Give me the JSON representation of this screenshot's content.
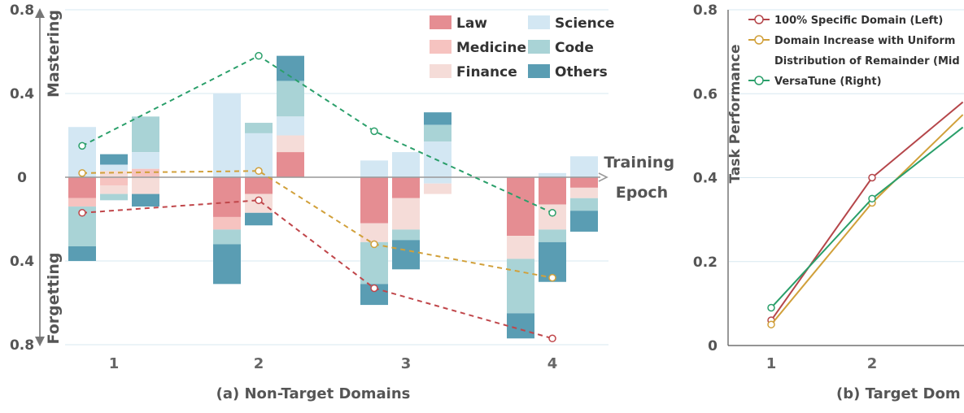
{
  "chart_data": [
    {
      "type": "bar",
      "subtitle": "(a) Non-Target Domains",
      "xlabel": "Training\nEpoch",
      "ylabel_top": "Mastering",
      "ylabel_bottom": "Forgetting",
      "categories": [
        "1",
        "2",
        "3",
        "4"
      ],
      "ylim": [
        -0.8,
        0.8
      ],
      "y_ticks": [
        {
          "value": 0.8,
          "label": "0.8"
        },
        {
          "value": 0.4,
          "label": "0.4"
        },
        {
          "value": 0,
          "label": "0"
        },
        {
          "value": -0.4,
          "label": "0.4"
        },
        {
          "value": -0.8,
          "label": "0.8"
        }
      ],
      "grid": true,
      "legend_position": "top-right",
      "domains": [
        "Law",
        "Medicine",
        "Finance",
        "Science",
        "Code",
        "Others"
      ],
      "domain_colors": {
        "Law": "#e58d92",
        "Medicine": "#f6c3c0",
        "Finance": "#f5dcd8",
        "Science": "#d3e7f3",
        "Code": "#a9d3d6",
        "Others": "#5a9db3"
      },
      "bar_groups": [
        {
          "category": "1",
          "bars": [
            {
              "offset": -1,
              "segments": [
                {
                  "domain": "Science",
                  "from": 0,
                  "to": 0.24
                },
                {
                  "domain": "Law",
                  "from": 0,
                  "to": -0.1
                },
                {
                  "domain": "Medicine",
                  "from": -0.1,
                  "to": -0.14
                },
                {
                  "domain": "Code",
                  "from": -0.14,
                  "to": -0.33
                },
                {
                  "domain": "Others",
                  "from": -0.33,
                  "to": -0.4
                }
              ]
            },
            {
              "offset": 0,
              "segments": [
                {
                  "domain": "Others",
                  "from": 0.11,
                  "to": 0.06
                },
                {
                  "domain": "Science",
                  "from": 0.06,
                  "to": 0.03
                },
                {
                  "domain": "Finance",
                  "from": 0.03,
                  "to": 0
                },
                {
                  "domain": "Medicine",
                  "from": 0,
                  "to": -0.04
                },
                {
                  "domain": "Finance",
                  "from": -0.04,
                  "to": -0.08
                },
                {
                  "domain": "Code",
                  "from": -0.08,
                  "to": -0.11
                }
              ]
            },
            {
              "offset": 1,
              "segments": [
                {
                  "domain": "Code",
                  "from": 0.29,
                  "to": 0.12
                },
                {
                  "domain": "Science",
                  "from": 0.12,
                  "to": 0.04
                },
                {
                  "domain": "Medicine",
                  "from": 0.04,
                  "to": 0
                },
                {
                  "domain": "Finance",
                  "from": 0,
                  "to": -0.08
                },
                {
                  "domain": "Others",
                  "from": -0.08,
                  "to": -0.14
                }
              ]
            }
          ]
        },
        {
          "category": "2",
          "bars": [
            {
              "offset": -1,
              "segments": [
                {
                  "domain": "Science",
                  "from": 0,
                  "to": 0.4
                },
                {
                  "domain": "Law",
                  "from": 0,
                  "to": -0.19
                },
                {
                  "domain": "Medicine",
                  "from": -0.19,
                  "to": -0.25
                },
                {
                  "domain": "Code",
                  "from": -0.25,
                  "to": -0.32
                },
                {
                  "domain": "Others",
                  "from": -0.32,
                  "to": -0.51
                }
              ]
            },
            {
              "offset": 0,
              "segments": [
                {
                  "domain": "Code",
                  "from": 0.26,
                  "to": 0.21
                },
                {
                  "domain": "Science",
                  "from": 0.21,
                  "to": 0
                },
                {
                  "domain": "Law",
                  "from": 0,
                  "to": -0.08
                },
                {
                  "domain": "Finance",
                  "from": -0.08,
                  "to": -0.17
                },
                {
                  "domain": "Others",
                  "from": -0.17,
                  "to": -0.23
                }
              ]
            },
            {
              "offset": 1,
              "segments": [
                {
                  "domain": "Others",
                  "from": 0.58,
                  "to": 0.46
                },
                {
                  "domain": "Code",
                  "from": 0.46,
                  "to": 0.29
                },
                {
                  "domain": "Science",
                  "from": 0.29,
                  "to": 0.2
                },
                {
                  "domain": "Finance",
                  "from": 0.2,
                  "to": 0.12
                },
                {
                  "domain": "Law",
                  "from": 0.12,
                  "to": 0
                }
              ]
            }
          ]
        },
        {
          "category": "3",
          "bars": [
            {
              "offset": -1,
              "segments": [
                {
                  "domain": "Science",
                  "from": 0,
                  "to": 0.08
                },
                {
                  "domain": "Law",
                  "from": 0,
                  "to": -0.22
                },
                {
                  "domain": "Finance",
                  "from": -0.22,
                  "to": -0.31
                },
                {
                  "domain": "Code",
                  "from": -0.31,
                  "to": -0.51
                },
                {
                  "domain": "Others",
                  "from": -0.51,
                  "to": -0.61
                }
              ]
            },
            {
              "offset": 0,
              "segments": [
                {
                  "domain": "Science",
                  "from": 0,
                  "to": 0.12
                },
                {
                  "domain": "Law",
                  "from": 0,
                  "to": -0.1
                },
                {
                  "domain": "Finance",
                  "from": -0.1,
                  "to": -0.25
                },
                {
                  "domain": "Code",
                  "from": -0.25,
                  "to": -0.3
                },
                {
                  "domain": "Others",
                  "from": -0.3,
                  "to": -0.44
                }
              ]
            },
            {
              "offset": 1,
              "segments": [
                {
                  "domain": "Others",
                  "from": 0.31,
                  "to": 0.25
                },
                {
                  "domain": "Code",
                  "from": 0.25,
                  "to": 0.17
                },
                {
                  "domain": "Science",
                  "from": 0.17,
                  "to": -0.03
                },
                {
                  "domain": "Finance",
                  "from": -0.03,
                  "to": -0.08
                }
              ]
            }
          ]
        },
        {
          "category": "4",
          "bars": [
            {
              "offset": -1,
              "segments": [
                {
                  "domain": "Law",
                  "from": 0,
                  "to": -0.28
                },
                {
                  "domain": "Finance",
                  "from": -0.28,
                  "to": -0.39
                },
                {
                  "domain": "Code",
                  "from": -0.39,
                  "to": -0.65
                },
                {
                  "domain": "Others",
                  "from": -0.65,
                  "to": -0.77
                }
              ]
            },
            {
              "offset": 0,
              "segments": [
                {
                  "domain": "Science",
                  "from": 0.02,
                  "to": 0
                },
                {
                  "domain": "Law",
                  "from": 0,
                  "to": -0.13
                },
                {
                  "domain": "Finance",
                  "from": -0.13,
                  "to": -0.25
                },
                {
                  "domain": "Code",
                  "from": -0.25,
                  "to": -0.31
                },
                {
                  "domain": "Others",
                  "from": -0.31,
                  "to": -0.5
                }
              ]
            },
            {
              "offset": 1,
              "segments": [
                {
                  "domain": "Science",
                  "from": 0.1,
                  "to": 0
                },
                {
                  "domain": "Law",
                  "from": 0,
                  "to": -0.05
                },
                {
                  "domain": "Finance",
                  "from": -0.05,
                  "to": -0.1
                },
                {
                  "domain": "Code",
                  "from": -0.1,
                  "to": -0.16
                },
                {
                  "domain": "Others",
                  "from": -0.16,
                  "to": -0.26
                }
              ]
            }
          ]
        }
      ],
      "line_series": [
        {
          "color": "#2a9f6a",
          "points": [
            {
              "x": 1,
              "offset": -1,
              "y": 0.15
            },
            {
              "x": 2,
              "offset": 0,
              "y": 0.58
            },
            {
              "x": 3,
              "offset": -1,
              "y": 0.22
            },
            {
              "x": 4,
              "offset": 0,
              "y": -0.17
            }
          ]
        },
        {
          "color": "#d1a03a",
          "points": [
            {
              "x": 1,
              "offset": -1,
              "y": 0.02
            },
            {
              "x": 2,
              "offset": 0,
              "y": 0.03
            },
            {
              "x": 3,
              "offset": -1,
              "y": -0.32
            },
            {
              "x": 4,
              "offset": 0,
              "y": -0.48
            }
          ]
        },
        {
          "color": "#c0464a",
          "points": [
            {
              "x": 1,
              "offset": -1,
              "y": -0.17
            },
            {
              "x": 2,
              "offset": 0,
              "y": -0.11
            },
            {
              "x": 3,
              "offset": -1,
              "y": -0.53
            },
            {
              "x": 4,
              "offset": 0,
              "y": -0.77
            }
          ]
        }
      ]
    },
    {
      "type": "line",
      "subtitle": "(b) Target Dom",
      "ylabel": "Task Performance",
      "categories": [
        "1",
        "2"
      ],
      "ylim": [
        0,
        0.8
      ],
      "y_ticks": [
        {
          "value": 0.8,
          "label": "0.8"
        },
        {
          "value": 0.6,
          "label": "0.6"
        },
        {
          "value": 0.4,
          "label": "0.4"
        },
        {
          "value": 0.2,
          "label": "0.2"
        },
        {
          "value": 0,
          "label": "0"
        }
      ],
      "legend_position": "top-left",
      "series": [
        {
          "name": "100% Specific Domain (Left)",
          "color": "#b5464a",
          "points": [
            {
              "x": 1,
              "y": 0.06
            },
            {
              "x": 2,
              "y": 0.4
            },
            {
              "x": 2.9,
              "y": 0.58
            }
          ]
        },
        {
          "name": "Domain Increase with Uniform\nDistribution of Remainder (Mid",
          "color": "#d1a03a",
          "points": [
            {
              "x": 1,
              "y": 0.05
            },
            {
              "x": 2,
              "y": 0.34
            },
            {
              "x": 2.9,
              "y": 0.55
            }
          ]
        },
        {
          "name": "VersaTune (Right)",
          "color": "#2a9f6a",
          "points": [
            {
              "x": 1,
              "y": 0.09
            },
            {
              "x": 2,
              "y": 0.35
            },
            {
              "x": 2.9,
              "y": 0.52
            }
          ]
        }
      ]
    }
  ]
}
